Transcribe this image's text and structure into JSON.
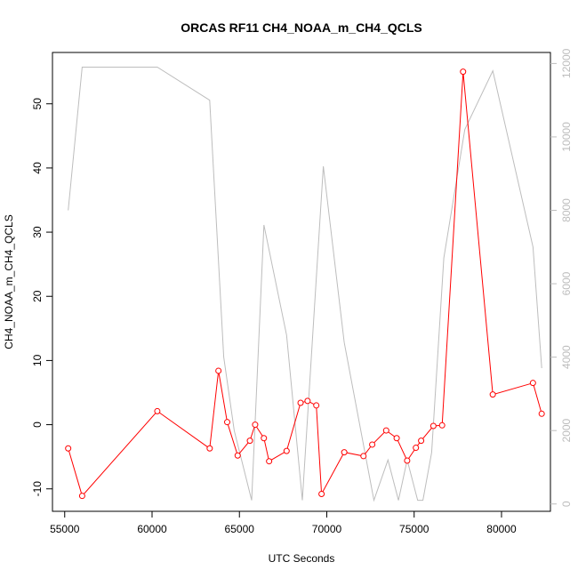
{
  "chart_data": {
    "type": "line",
    "title": "ORCAS RF11 CH4_NOAA_m_CH4_QCLS",
    "xlabel": "UTC Seconds",
    "ylabel": "CH4_NOAA_m_CH4_QCLS",
    "xlim": [
      54300,
      82800
    ],
    "ylim": [
      -13.5,
      58
    ],
    "y2lim": [
      -200,
      12300
    ],
    "x_ticks": [
      55000,
      60000,
      65000,
      70000,
      75000,
      80000
    ],
    "y_ticks": [
      -10,
      0,
      10,
      20,
      30,
      40,
      50
    ],
    "y2_ticks": [
      0,
      2000,
      4000,
      6000,
      8000,
      10000,
      12000
    ],
    "grid": false,
    "series": [
      {
        "color": "#ff0000",
        "marker": "open-circle",
        "axis": "left",
        "x": [
          55200,
          56000,
          60300,
          63300,
          63800,
          64300,
          64900,
          65600,
          65900,
          66400,
          66700,
          67700,
          68500,
          68900,
          69400,
          69700,
          71000,
          72100,
          72600,
          73400,
          74000,
          74600,
          75100,
          75400,
          76100,
          76600,
          77800,
          79500,
          81800,
          82300
        ],
        "y": [
          -3.7,
          -11.1,
          2.1,
          -3.7,
          8.4,
          0.4,
          -4.8,
          -2.5,
          0.0,
          -2.1,
          -5.7,
          -4.1,
          3.4,
          3.7,
          3.0,
          -10.8,
          -4.3,
          -4.9,
          -3.1,
          -0.9,
          -2.1,
          -5.6,
          -3.6,
          -2.5,
          -0.2,
          -0.1,
          55.0,
          4.7,
          6.5,
          1.7
        ]
      },
      {
        "color": "#bdbdbd",
        "axis": "right",
        "x": [
          55200,
          56000,
          60300,
          63300,
          64100,
          64700,
          65700,
          66400,
          67700,
          68600,
          69800,
          71000,
          72700,
          73500,
          74100,
          74600,
          75200,
          75500,
          76000,
          76700,
          77900,
          79500,
          81800,
          82300
        ],
        "y": [
          8000,
          11900,
          11900,
          11000,
          4000,
          2000,
          100,
          7600,
          4600,
          100,
          9200,
          4400,
          100,
          1200,
          100,
          1200,
          100,
          100,
          1400,
          6700,
          10200,
          11800,
          7000,
          3700
        ]
      }
    ]
  }
}
